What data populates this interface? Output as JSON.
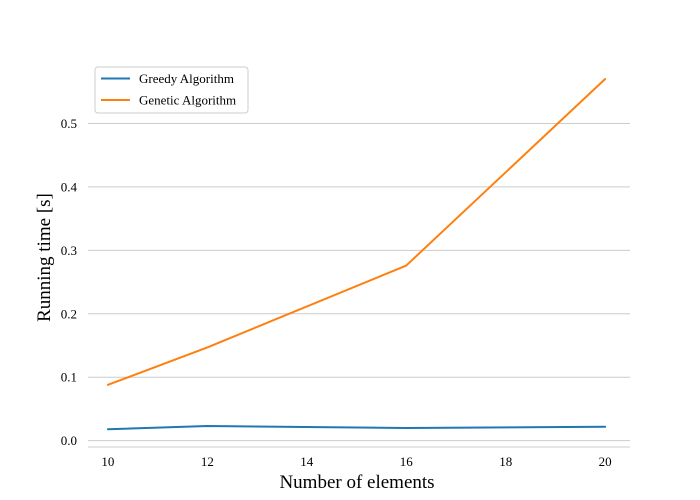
{
  "chart_data": {
    "type": "line",
    "title": "",
    "xlabel": "Number of elements",
    "ylabel": "Running time [s]",
    "x": [
      10,
      12,
      16,
      20
    ],
    "series": [
      {
        "name": "Greedy Algorithm",
        "color": "#1f77b4",
        "values": [
          0.018,
          0.023,
          0.02,
          0.022
        ]
      },
      {
        "name": "Genetic Algorithm",
        "color": "#ff7f0e",
        "values": [
          0.088,
          0.147,
          0.276,
          0.57
        ]
      }
    ],
    "xticks": [
      10,
      12,
      14,
      16,
      18,
      20
    ],
    "yticks": [
      0.0,
      0.1,
      0.2,
      0.3,
      0.4,
      0.5
    ],
    "xtick_labels": [
      "10",
      "12",
      "14",
      "16",
      "18",
      "20"
    ],
    "ytick_labels": [
      "0.0",
      "0.1",
      "0.2",
      "0.3",
      "0.4",
      "0.5"
    ],
    "xlim": [
      9.6,
      20.5
    ],
    "ylim": [
      -0.01,
      0.6
    ],
    "grid": "horizontal",
    "legend_position": "upper-left"
  }
}
